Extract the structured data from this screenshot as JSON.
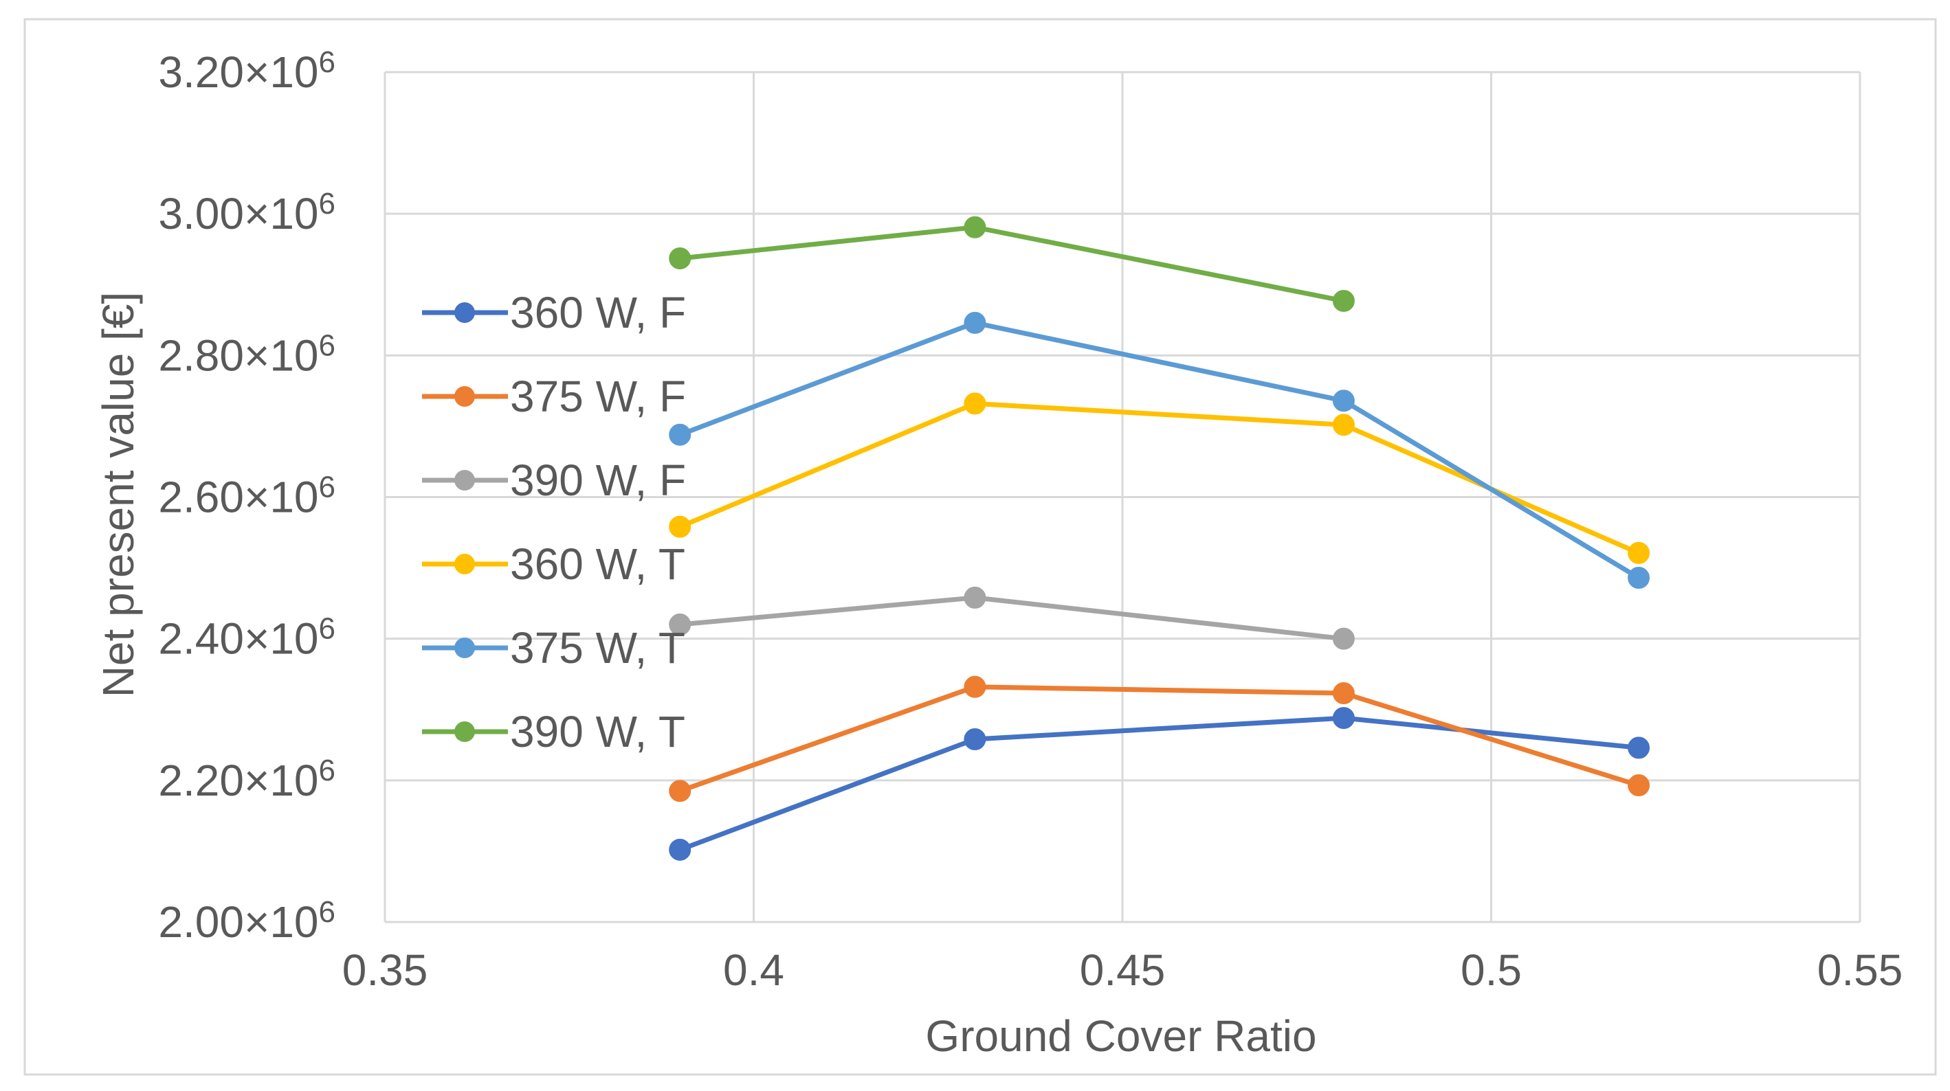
{
  "chart_data": {
    "type": "line",
    "title": "",
    "xlabel": "Ground Cover Ratio",
    "ylabel": "Net present value [€]",
    "xlim": [
      0.35,
      0.55
    ],
    "ylim": [
      2000000,
      3200000
    ],
    "x_ticks": [
      0.35,
      0.4,
      0.45,
      0.5,
      0.55
    ],
    "x_tick_labels": [
      "0.35",
      "0.4",
      "0.45",
      "0.5",
      "0.55"
    ],
    "y_ticks": [
      2000000,
      2200000,
      2400000,
      2600000,
      2800000,
      3000000,
      3200000
    ],
    "y_tick_labels": [
      {
        "mantissa": "2.00×10",
        "exp": "6"
      },
      {
        "mantissa": "2.20×10",
        "exp": "6"
      },
      {
        "mantissa": "2.40×10",
        "exp": "6"
      },
      {
        "mantissa": "2.60×10",
        "exp": "6"
      },
      {
        "mantissa": "2.80×10",
        "exp": "6"
      },
      {
        "mantissa": "3.00×10",
        "exp": "6"
      },
      {
        "mantissa": "3.20×10",
        "exp": "6"
      }
    ],
    "grid": true,
    "legend_position": "left-center",
    "series": [
      {
        "name": "360 W, F",
        "color": "#4472C4",
        "x": [
          0.39,
          0.43,
          0.48,
          0.52
        ],
        "values": [
          2102000,
          2258000,
          2288000,
          2246000
        ]
      },
      {
        "name": "375 W, F",
        "color": "#ED7D31",
        "x": [
          0.39,
          0.43,
          0.48,
          0.52
        ],
        "values": [
          2185000,
          2332000,
          2323000,
          2193000
        ]
      },
      {
        "name": "390 W, F",
        "color": "#A5A5A5",
        "x": [
          0.39,
          0.43,
          0.48
        ],
        "values": [
          2420000,
          2458000,
          2400000
        ]
      },
      {
        "name": "360 W, T",
        "color": "#FFC000",
        "x": [
          0.39,
          0.43,
          0.48,
          0.52
        ],
        "values": [
          2558000,
          2732000,
          2702000,
          2521000
        ]
      },
      {
        "name": "375 W, T",
        "color": "#5B9BD5",
        "x": [
          0.39,
          0.43,
          0.48,
          0.52
        ],
        "values": [
          2688000,
          2846000,
          2736000,
          2486000
        ]
      },
      {
        "name": "390 W, T",
        "color": "#70AD47",
        "x": [
          0.39,
          0.43,
          0.48
        ],
        "values": [
          2937000,
          2981000,
          2877000
        ]
      }
    ]
  }
}
